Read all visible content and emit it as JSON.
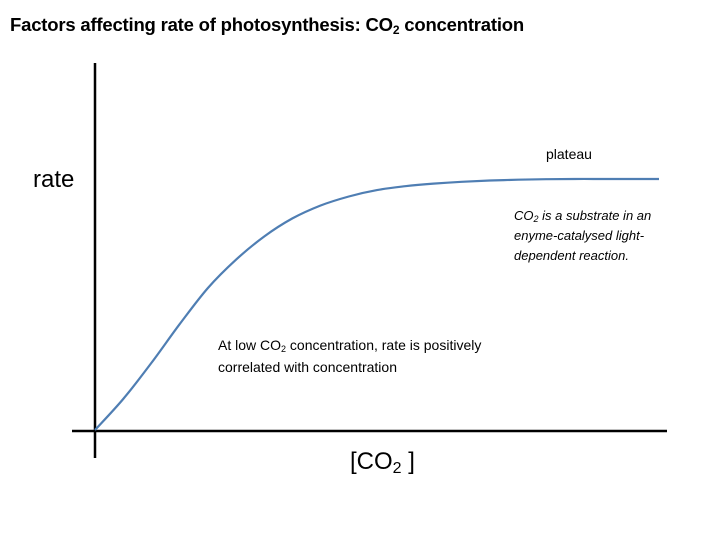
{
  "chart_data": {
    "type": "line",
    "title": {
      "text_before": "Factors affecting rate of photosynthesis: CO",
      "subscript": "2",
      "text_after": " concentration"
    },
    "ylabel": "rate",
    "xlabel": {
      "open": "[",
      "text": "CO",
      "subscript": "2",
      "close": "]"
    },
    "x_ticks": "none",
    "y_ticks": "none",
    "grid": false,
    "xlim": [
      0,
      100
    ],
    "ylim": [
      0,
      100
    ],
    "series": [
      {
        "color": "#4f7eb3",
        "x": [
          0,
          5,
          10,
          15,
          20,
          25,
          30,
          35,
          40,
          45,
          50,
          55,
          60,
          65,
          70,
          75,
          80,
          85,
          90,
          95,
          100
        ],
        "y": [
          0,
          12,
          26,
          41,
          55,
          66,
          75,
          82,
          87,
          90.5,
          93,
          94.5,
          95.5,
          96.2,
          96.7,
          97,
          97.2,
          97.3,
          97.3,
          97.3,
          97.3
        ]
      }
    ],
    "annotations": {
      "plateau": "plateau",
      "substrate": {
        "before": "CO",
        "subscript": "2",
        "after": " is a substrate in an enyme-catalysed light-dependent reaction."
      },
      "low": {
        "before": "At low CO",
        "subscript": "2",
        "after": " concentration, rate is positively correlated with concentration"
      }
    }
  }
}
